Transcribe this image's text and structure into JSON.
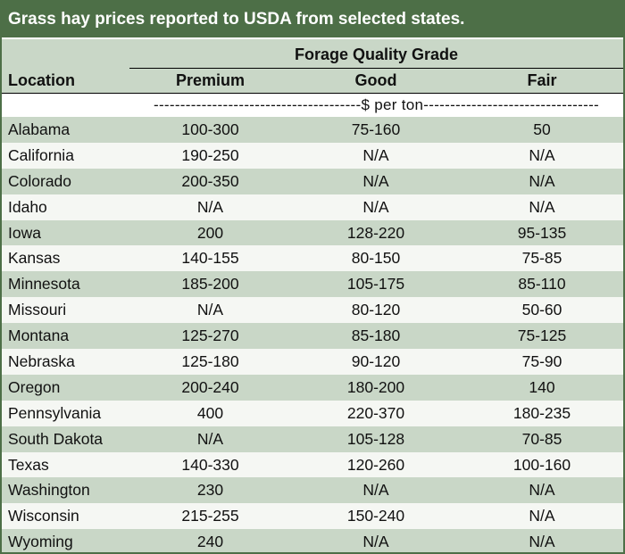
{
  "title": "Grass hay prices reported to USDA from selected states.",
  "header": {
    "group_label": "Forage Quality Grade",
    "location": "Location",
    "premium": "Premium",
    "good": "Good",
    "fair": "Fair"
  },
  "unit_label": "---------------------------------------$ per ton---------------------------------",
  "colors": {
    "title_bg": "#4d6f47",
    "stripe": "#c9d7c7",
    "light_row": "#f5f7f3"
  },
  "rows": [
    {
      "location": "Alabama",
      "premium": "100-300",
      "good": "75-160",
      "fair": "50"
    },
    {
      "location": "California",
      "premium": "190-250",
      "good": "N/A",
      "fair": "N/A"
    },
    {
      "location": "Colorado",
      "premium": "200-350",
      "good": "N/A",
      "fair": "N/A"
    },
    {
      "location": "Idaho",
      "premium": "N/A",
      "good": "N/A",
      "fair": "N/A"
    },
    {
      "location": "Iowa",
      "premium": "200",
      "good": "128-220",
      "fair": "95-135"
    },
    {
      "location": "Kansas",
      "premium": "140-155",
      "good": "80-150",
      "fair": "75-85"
    },
    {
      "location": "Minnesota",
      "premium": "185-200",
      "good": "105-175",
      "fair": "85-110"
    },
    {
      "location": "Missouri",
      "premium": "N/A",
      "good": "80-120",
      "fair": "50-60"
    },
    {
      "location": "Montana",
      "premium": "125-270",
      "good": "85-180",
      "fair": "75-125"
    },
    {
      "location": "Nebraska",
      "premium": "125-180",
      "good": "90-120",
      "fair": "75-90"
    },
    {
      "location": "Oregon",
      "premium": "200-240",
      "good": "180-200",
      "fair": "140"
    },
    {
      "location": "Pennsylvania",
      "premium": "400",
      "good": "220-370",
      "fair": "180-235"
    },
    {
      "location": "South Dakota",
      "premium": "N/A",
      "good": "105-128",
      "fair": "70-85"
    },
    {
      "location": "Texas",
      "premium": "140-330",
      "good": "120-260",
      "fair": "100-160"
    },
    {
      "location": "Washington",
      "premium": "230",
      "good": "N/A",
      "fair": "N/A"
    },
    {
      "location": "Wisconsin",
      "premium": "215-255",
      "good": "150-240",
      "fair": "N/A"
    },
    {
      "location": "Wyoming",
      "premium": "240",
      "good": "N/A",
      "fair": "N/A"
    }
  ]
}
